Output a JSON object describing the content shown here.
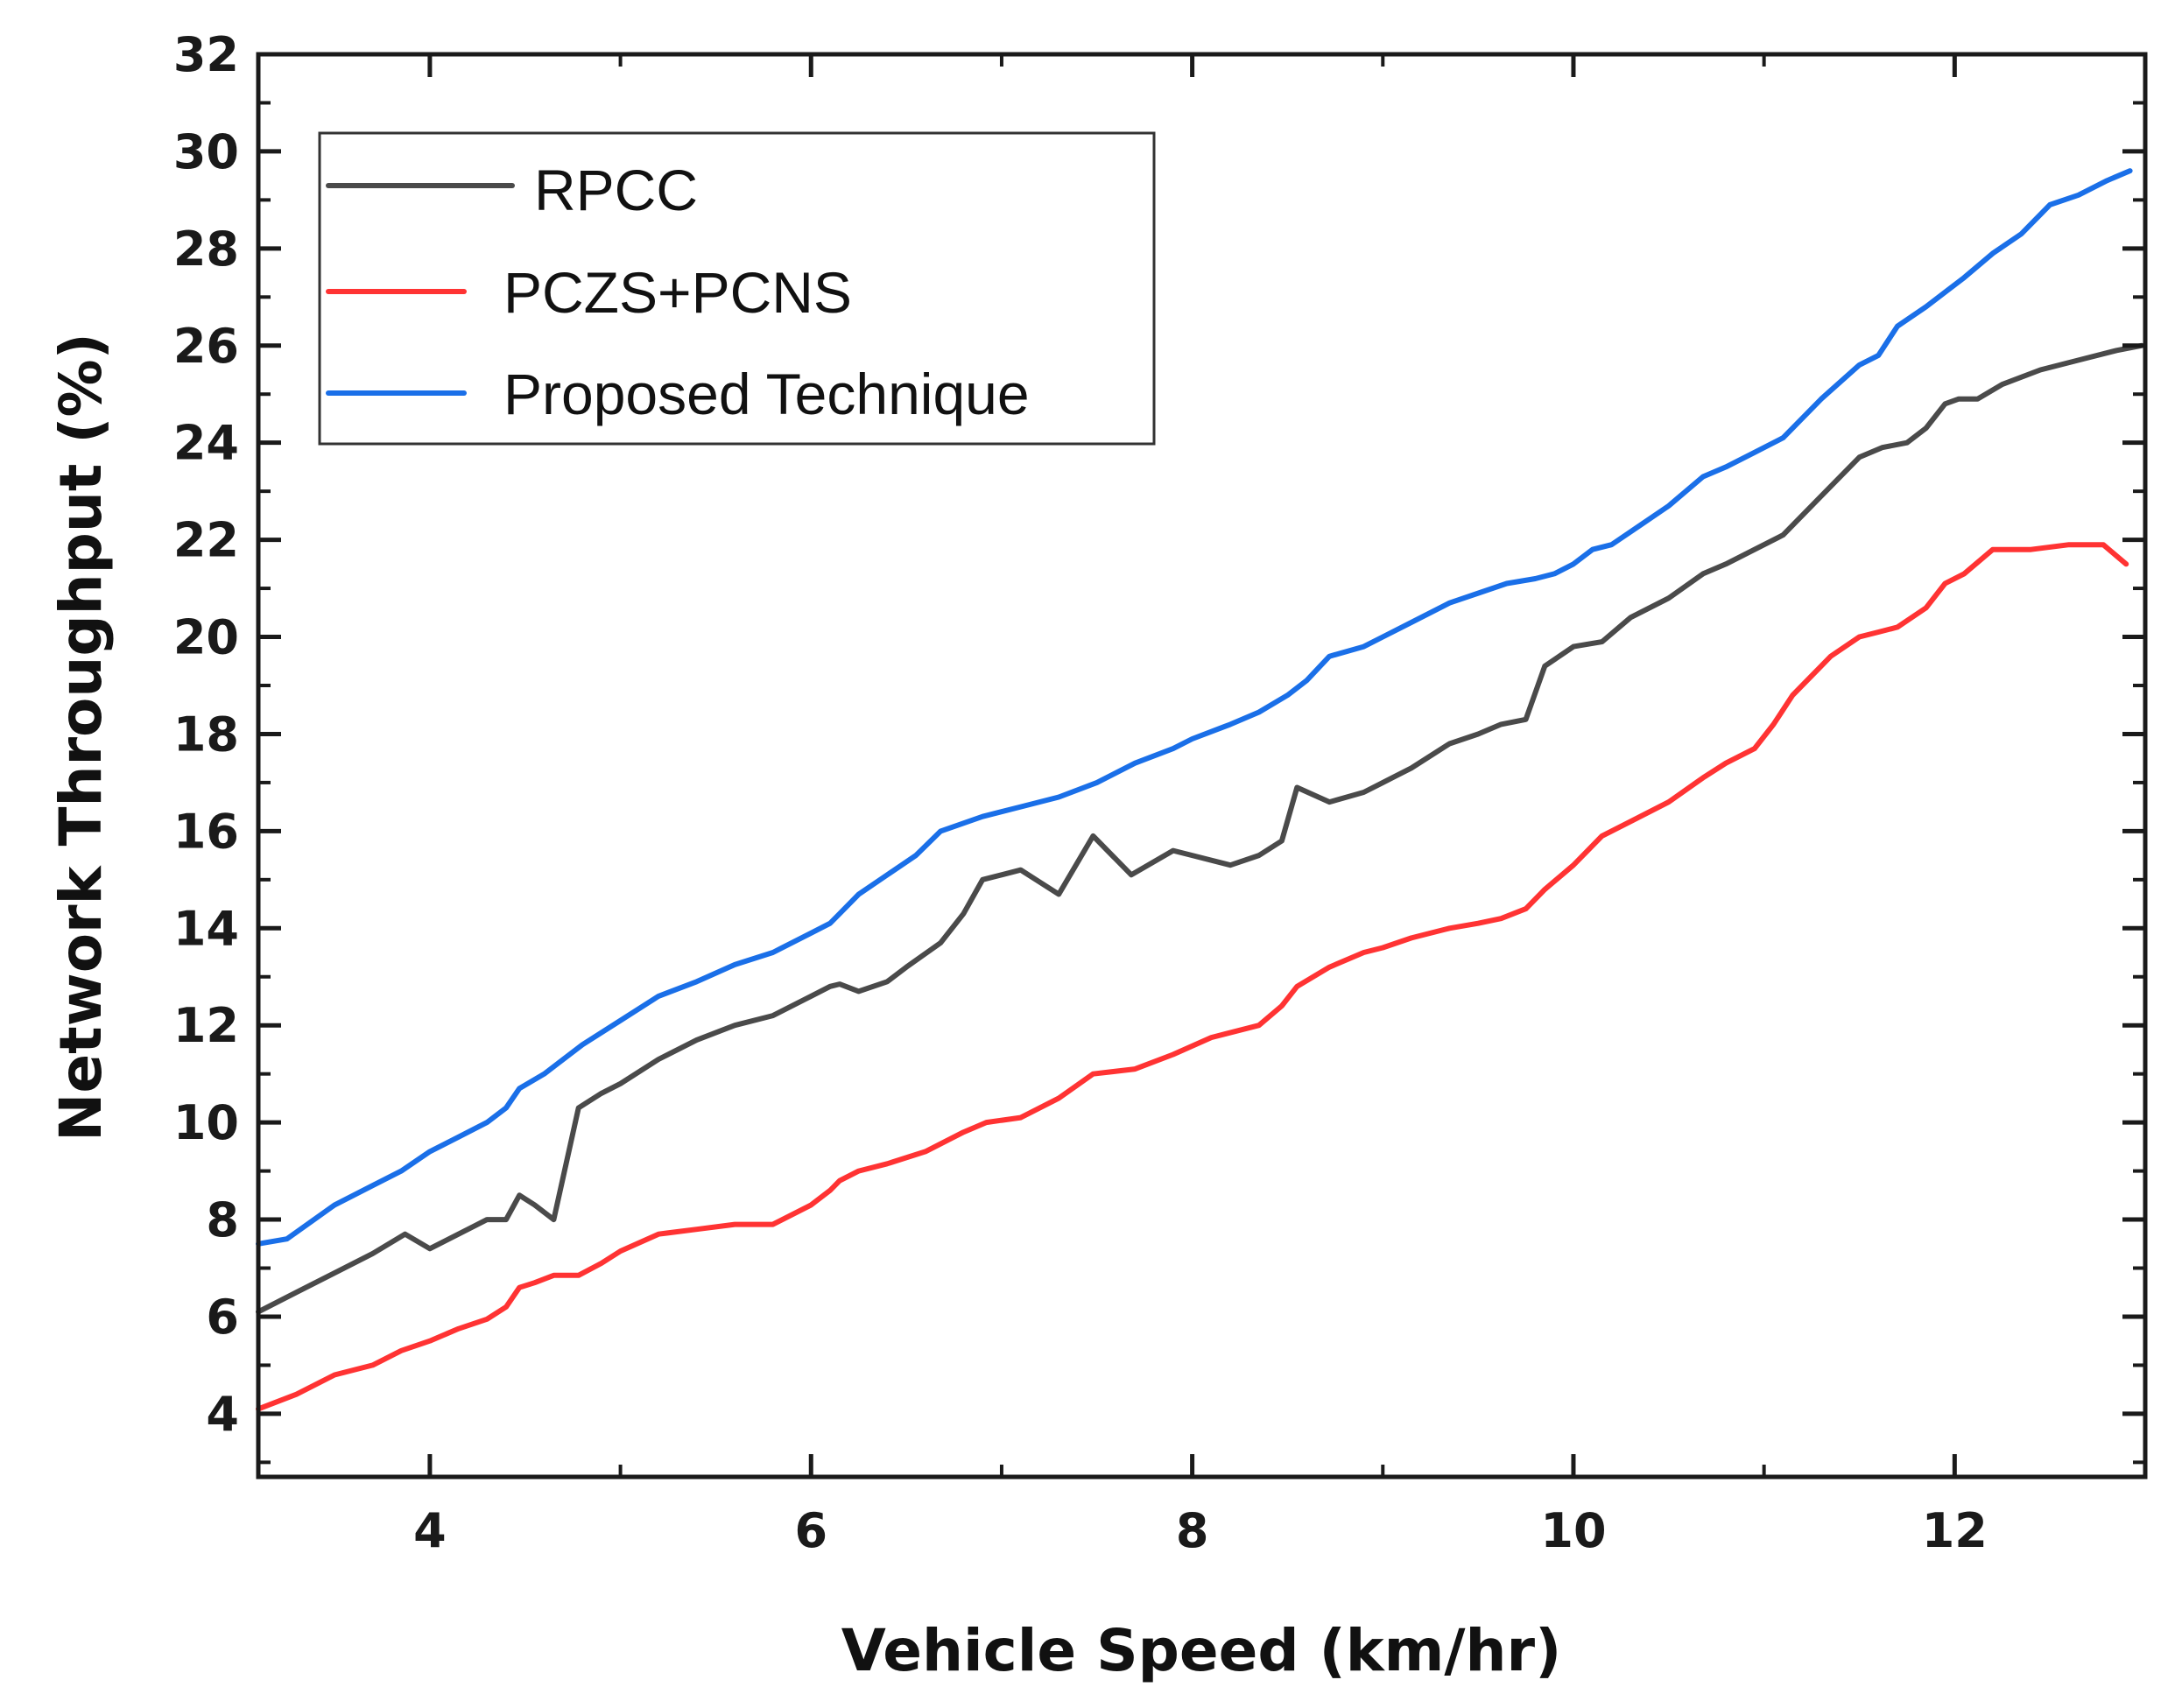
{
  "chart_data": {
    "type": "line",
    "title": "",
    "xlabel": "Vehicle Speed (km/hr)",
    "ylabel": "Network Throughput (%)",
    "xlim": [
      3.1,
      13.0
    ],
    "ylim": [
      2.7,
      32.0
    ],
    "xticks": [
      4,
      6,
      8,
      10,
      12
    ],
    "xtick_labels": [
      "4",
      "6",
      "8",
      "10",
      "12"
    ],
    "yticks": [
      4,
      6,
      8,
      10,
      12,
      14,
      16,
      18,
      20,
      22,
      24,
      26,
      28,
      30,
      32
    ],
    "ytick_labels": [
      "4",
      "6",
      "8",
      "10",
      "12",
      "14",
      "16",
      "18",
      "20",
      "22",
      "24",
      "26",
      "28",
      "30",
      "32"
    ],
    "grid": false,
    "legend_position": "top-left",
    "series": [
      {
        "name": "RPCC",
        "color": "#4a4a4a",
        "x": [
          3.1,
          3.3,
          3.5,
          3.7,
          3.87,
          4.0,
          4.15,
          4.3,
          4.4,
          4.47,
          4.55,
          4.65,
          4.78,
          4.9,
          5.0,
          5.2,
          5.4,
          5.6,
          5.8,
          6.0,
          6.1,
          6.15,
          6.25,
          6.4,
          6.5,
          6.68,
          6.8,
          6.9,
          7.0,
          7.1,
          7.2,
          7.3,
          7.48,
          7.58,
          7.68,
          7.9,
          8.0,
          8.2,
          8.35,
          8.47,
          8.55,
          8.72,
          8.9,
          9.0,
          9.15,
          9.35,
          9.5,
          9.62,
          9.75,
          9.85,
          10.0,
          10.15,
          10.3,
          10.5,
          10.68,
          10.8,
          10.95,
          11.1,
          11.3,
          11.5,
          11.62,
          11.75,
          11.85,
          11.95,
          12.02,
          12.12,
          12.25,
          12.45,
          12.65,
          12.85,
          12.98
        ],
        "y": [
          6.1,
          6.5,
          6.9,
          7.3,
          7.7,
          7.4,
          7.7,
          8.0,
          8.0,
          8.5,
          8.3,
          8.0,
          10.3,
          10.6,
          10.8,
          11.3,
          11.7,
          12.0,
          12.2,
          12.6,
          12.8,
          12.85,
          12.7,
          12.9,
          13.2,
          13.7,
          14.3,
          15.0,
          15.1,
          15.2,
          14.95,
          14.7,
          15.9,
          15.5,
          15.1,
          15.6,
          15.5,
          15.3,
          15.5,
          15.8,
          16.9,
          16.6,
          16.8,
          17.0,
          17.3,
          17.8,
          18.0,
          18.2,
          18.3,
          19.4,
          19.8,
          19.9,
          20.4,
          20.8,
          21.3,
          21.5,
          21.8,
          22.1,
          22.9,
          23.7,
          23.9,
          24.0,
          24.3,
          24.8,
          24.9,
          24.9,
          25.2,
          25.5,
          25.7,
          25.9,
          26.0
        ]
      },
      {
        "name": "PCZS+PCNS",
        "color": "#ff3333",
        "x": [
          3.1,
          3.3,
          3.5,
          3.7,
          3.85,
          4.0,
          4.15,
          4.3,
          4.4,
          4.47,
          4.55,
          4.65,
          4.78,
          4.9,
          5.0,
          5.2,
          5.4,
          5.6,
          5.8,
          6.0,
          6.1,
          6.15,
          6.25,
          6.4,
          6.6,
          6.8,
          6.92,
          7.1,
          7.3,
          7.48,
          7.7,
          7.9,
          8.1,
          8.35,
          8.47,
          8.55,
          8.72,
          8.9,
          9.0,
          9.15,
          9.35,
          9.5,
          9.62,
          9.75,
          9.85,
          10.0,
          10.15,
          10.3,
          10.5,
          10.68,
          10.8,
          10.95,
          11.05,
          11.15,
          11.25,
          11.35,
          11.5,
          11.6,
          11.7,
          11.85,
          11.95,
          12.05,
          12.2,
          12.4,
          12.6,
          12.78,
          12.9
        ],
        "y": [
          4.1,
          4.4,
          4.8,
          5.0,
          5.3,
          5.5,
          5.75,
          5.95,
          6.2,
          6.6,
          6.7,
          6.85,
          6.85,
          7.1,
          7.35,
          7.7,
          7.8,
          7.9,
          7.9,
          8.3,
          8.6,
          8.8,
          9.0,
          9.15,
          9.4,
          9.8,
          10.0,
          10.1,
          10.5,
          11.0,
          11.1,
          11.4,
          11.75,
          12.0,
          12.4,
          12.8,
          13.2,
          13.5,
          13.6,
          13.8,
          14.0,
          14.1,
          14.2,
          14.4,
          14.8,
          15.3,
          15.9,
          16.2,
          16.6,
          17.1,
          17.4,
          17.7,
          18.2,
          18.8,
          19.2,
          19.6,
          20.0,
          20.1,
          20.2,
          20.6,
          21.1,
          21.3,
          21.8,
          21.8,
          21.9,
          21.9,
          21.5
        ]
      },
      {
        "name": "Proposed Technique",
        "color": "#1a6fe8",
        "x": [
          3.1,
          3.25,
          3.5,
          3.7,
          3.85,
          4.0,
          4.15,
          4.3,
          4.4,
          4.47,
          4.6,
          4.8,
          5.0,
          5.2,
          5.4,
          5.6,
          5.8,
          6.0,
          6.1,
          6.15,
          6.25,
          6.4,
          6.55,
          6.68,
          6.9,
          7.1,
          7.3,
          7.5,
          7.7,
          7.9,
          8.0,
          8.2,
          8.35,
          8.5,
          8.6,
          8.72,
          8.9,
          9.0,
          9.15,
          9.35,
          9.5,
          9.65,
          9.8,
          9.9,
          10.0,
          10.1,
          10.2,
          10.35,
          10.5,
          10.68,
          10.8,
          10.95,
          11.1,
          11.3,
          11.5,
          11.6,
          11.7,
          11.85,
          11.95,
          12.05,
          12.2,
          12.35,
          12.5,
          12.65,
          12.8,
          12.92
        ],
        "y": [
          7.5,
          7.6,
          8.3,
          8.7,
          9.0,
          9.4,
          9.7,
          10.0,
          10.3,
          10.7,
          11.0,
          11.6,
          12.1,
          12.6,
          12.9,
          13.25,
          13.5,
          13.9,
          14.1,
          14.3,
          14.7,
          15.1,
          15.5,
          16.0,
          16.3,
          16.5,
          16.7,
          17.0,
          17.4,
          17.7,
          17.9,
          18.2,
          18.45,
          18.8,
          19.1,
          19.6,
          19.8,
          20.0,
          20.3,
          20.7,
          20.9,
          21.1,
          21.2,
          21.3,
          21.5,
          21.8,
          21.9,
          22.3,
          22.7,
          23.3,
          23.5,
          23.8,
          24.1,
          24.9,
          25.6,
          25.8,
          26.4,
          26.8,
          27.1,
          27.4,
          27.9,
          28.3,
          28.9,
          29.1,
          29.4,
          29.6
        ]
      }
    ]
  }
}
